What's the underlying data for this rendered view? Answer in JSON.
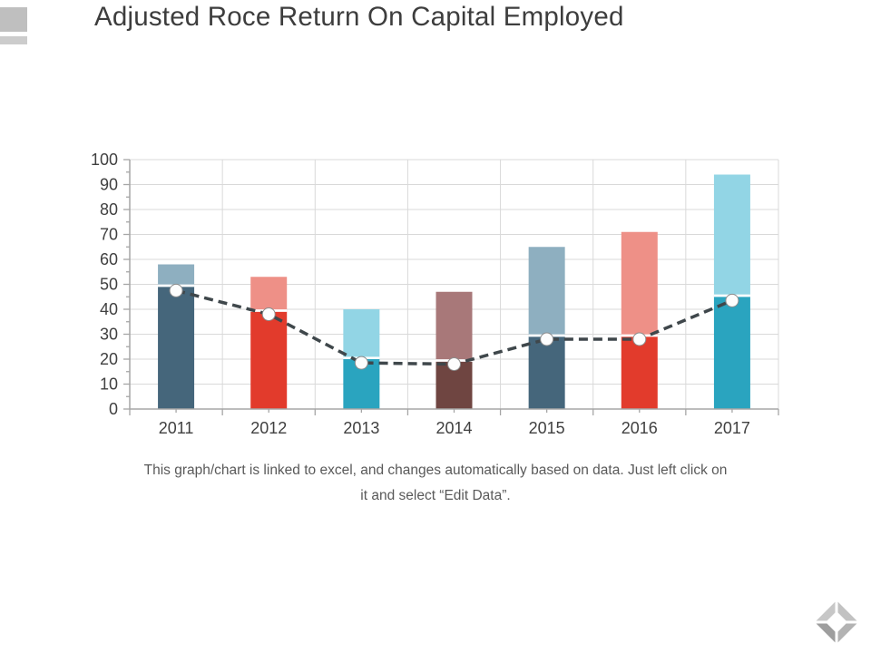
{
  "title": "Adjusted Roce Return On Capital Employed",
  "note": {
    "line1": "This graph/chart is linked to excel, and changes automatically based on data. Just left click on",
    "line2": "it and select “Edit Data”."
  },
  "icons": {
    "bottom_right": "diamond-nav-icon",
    "top_left": "gray-square-decoration"
  },
  "decor": {
    "square_color": "#BFBFBF",
    "bar_color": "#CCCCCC",
    "icon_grays": [
      "#C7C7C7",
      "#C2C2C2",
      "#B3B3B3",
      "#9E9E9E"
    ]
  },
  "chart_data": {
    "type": "combo: stacked-bar + dashed line",
    "title": "Adjusted Roce Return On Capital Employed",
    "categories": [
      "2011",
      "2012",
      "2013",
      "2014",
      "2015",
      "2016",
      "2017"
    ],
    "series": [
      {
        "name": "bottom-segment",
        "kind": "bar-stacked",
        "values": [
          49,
          39,
          20,
          19,
          29,
          29,
          45
        ],
        "colors": [
          "#45667B",
          "#E23B2C",
          "#2AA4BF",
          "#6F4541",
          "#45667B",
          "#E23B2C",
          "#2AA4BF"
        ]
      },
      {
        "name": "top-segment",
        "kind": "bar-stacked",
        "values": [
          9,
          14,
          20,
          28,
          36,
          42,
          49
        ],
        "colors": [
          "#8EAFC0",
          "#EE9087",
          "#92D5E5",
          "#A87879",
          "#8EAFC0",
          "#EE9087",
          "#92D5E5"
        ]
      },
      {
        "name": "trend-line",
        "kind": "line-dashed-with-markers",
        "values": [
          47.5,
          38,
          18.5,
          18,
          28,
          28,
          43.5
        ],
        "color": "#3F474B",
        "marker_fill": "#FDFDFD",
        "marker_stroke": "#8C8C8C"
      }
    ],
    "xlabel": "",
    "ylabel": "",
    "ylim": [
      0,
      100
    ],
    "ytick_step": 10,
    "ytick_minor_step": 5,
    "grid": true,
    "grid_color": "#D9D9D9",
    "axis_color": "#A6A6A6",
    "tick_label_color": "#404040",
    "legend": "none"
  }
}
